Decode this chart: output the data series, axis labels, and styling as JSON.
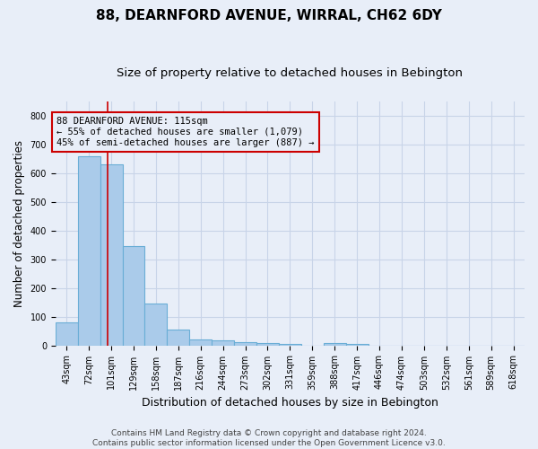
{
  "title": "88, DEARNFORD AVENUE, WIRRAL, CH62 6DY",
  "subtitle": "Size of property relative to detached houses in Bebington",
  "xlabel": "Distribution of detached houses by size in Bebington",
  "ylabel": "Number of detached properties",
  "categories": [
    "43sqm",
    "72sqm",
    "101sqm",
    "129sqm",
    "158sqm",
    "187sqm",
    "216sqm",
    "244sqm",
    "273sqm",
    "302sqm",
    "331sqm",
    "359sqm",
    "388sqm",
    "417sqm",
    "446sqm",
    "474sqm",
    "503sqm",
    "532sqm",
    "561sqm",
    "589sqm",
    "618sqm"
  ],
  "values": [
    80,
    660,
    630,
    345,
    145,
    55,
    22,
    17,
    12,
    8,
    5,
    0,
    8,
    5,
    0,
    0,
    0,
    0,
    0,
    0,
    0
  ],
  "bar_color": "#aacbea",
  "bar_edgecolor": "#6aaed6",
  "bar_linewidth": 0.8,
  "grid_color": "#c8d4e8",
  "bg_color": "#e8eef8",
  "annotation_line1": "88 DEARNFORD AVENUE: 115sqm",
  "annotation_line2": "← 55% of detached houses are smaller (1,079)",
  "annotation_line3": "45% of semi-detached houses are larger (887) →",
  "annotation_box_edgecolor": "#cc0000",
  "vline_color": "#cc0000",
  "vline_x_index": 1.85,
  "ylim": [
    0,
    850
  ],
  "yticks": [
    0,
    100,
    200,
    300,
    400,
    500,
    600,
    700,
    800
  ],
  "footnote": "Contains HM Land Registry data © Crown copyright and database right 2024.\nContains public sector information licensed under the Open Government Licence v3.0.",
  "title_fontsize": 11,
  "subtitle_fontsize": 9.5,
  "xlabel_fontsize": 9,
  "ylabel_fontsize": 8.5,
  "tick_fontsize": 7,
  "annotation_fontsize": 7.5,
  "footnote_fontsize": 6.5
}
